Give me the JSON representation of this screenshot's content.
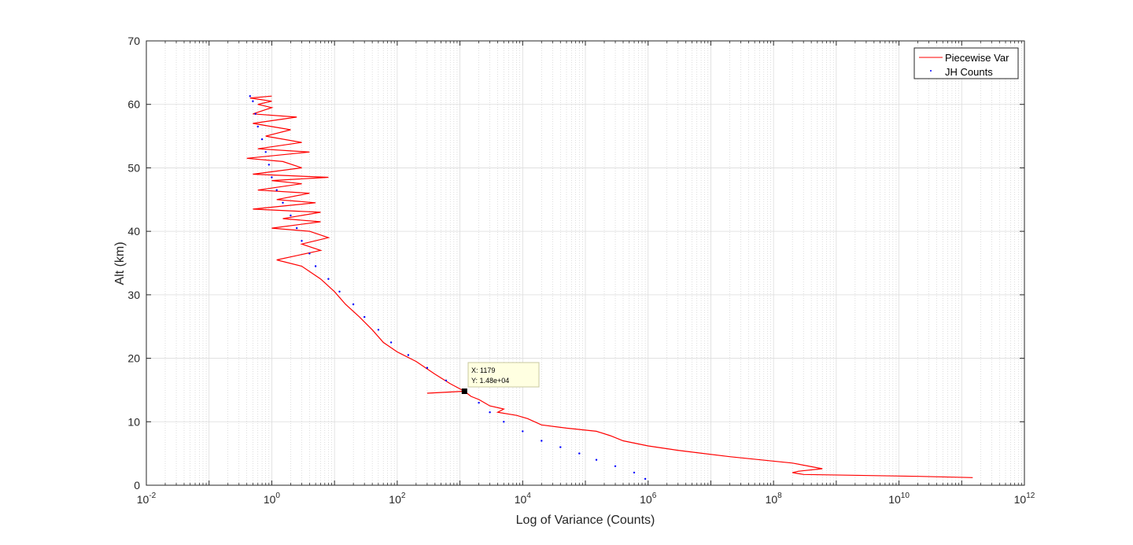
{
  "chart_data": {
    "type": "line",
    "title": "",
    "xlabel": "Log of Variance (Counts)",
    "ylabel": "Alt (km)",
    "xscale": "log",
    "xlim": [
      0.01,
      1000000000000
    ],
    "ylim": [
      0,
      70
    ],
    "x_ticks": [
      {
        "base": "10",
        "exp": "-2"
      },
      {
        "base": "10",
        "exp": "0"
      },
      {
        "base": "10",
        "exp": "2"
      },
      {
        "base": "10",
        "exp": "4"
      },
      {
        "base": "10",
        "exp": "6"
      },
      {
        "base": "10",
        "exp": "8"
      },
      {
        "base": "10",
        "exp": "10"
      },
      {
        "base": "10",
        "exp": "12"
      }
    ],
    "y_ticks": [
      "0",
      "10",
      "20",
      "30",
      "40",
      "50",
      "60",
      "70"
    ],
    "grid": true,
    "minor_grid": true,
    "legend_position": "top-right",
    "series": [
      {
        "name": "Piecewise Var",
        "color": "#ff0000",
        "style": "line",
        "points": [
          [
            150000000000,
            1.2
          ],
          [
            20000000000,
            1.4
          ],
          [
            300000000,
            1.7
          ],
          [
            200000000,
            2.0
          ],
          [
            250000000,
            2.2
          ],
          [
            600000000,
            2.6
          ],
          [
            200000000,
            3.5
          ],
          [
            20000000,
            4.5
          ],
          [
            3000000,
            5.5
          ],
          [
            1000000,
            6.2
          ],
          [
            400000,
            7.0
          ],
          [
            250000,
            7.8
          ],
          [
            150000,
            8.5
          ],
          [
            50000,
            9.0
          ],
          [
            20000,
            9.5
          ],
          [
            12000,
            10.5
          ],
          [
            8000,
            11.0
          ],
          [
            4000,
            11.5
          ],
          [
            5000,
            12.0
          ],
          [
            3000,
            12.5
          ],
          [
            2000,
            13.5
          ],
          [
            1500,
            14.0
          ],
          [
            1179,
            14.8
          ],
          [
            300,
            14.5
          ],
          [
            1179,
            14.8
          ],
          [
            700,
            16.0
          ],
          [
            400,
            17.5
          ],
          [
            200,
            19.5
          ],
          [
            100,
            21.0
          ],
          [
            60,
            22.5
          ],
          [
            40,
            24.5
          ],
          [
            25,
            26.5
          ],
          [
            15,
            28.5
          ],
          [
            10,
            30.5
          ],
          [
            6,
            32.5
          ],
          [
            3,
            34.5
          ],
          [
            1.2,
            35.5
          ],
          [
            6,
            37.0
          ],
          [
            3,
            38.0
          ],
          [
            8,
            39.0
          ],
          [
            4,
            40.0
          ],
          [
            1.0,
            40.5
          ],
          [
            6,
            41.5
          ],
          [
            1.5,
            42.0
          ],
          [
            6,
            43.0
          ],
          [
            0.5,
            43.5
          ],
          [
            5,
            44.5
          ],
          [
            1.2,
            45.0
          ],
          [
            4,
            46.0
          ],
          [
            0.6,
            46.5
          ],
          [
            3,
            47.5
          ],
          [
            1.0,
            48.0
          ],
          [
            8,
            48.5
          ],
          [
            0.5,
            49.0
          ],
          [
            3,
            50.0
          ],
          [
            1.5,
            51.0
          ],
          [
            0.4,
            51.5
          ],
          [
            4,
            52.5
          ],
          [
            0.6,
            53.0
          ],
          [
            3,
            54.0
          ],
          [
            0.8,
            55.0
          ],
          [
            2,
            56.0
          ],
          [
            0.5,
            57.0
          ],
          [
            2.5,
            58.0
          ],
          [
            0.5,
            58.5
          ],
          [
            1.0,
            59.5
          ],
          [
            0.6,
            60.0
          ],
          [
            1.0,
            60.5
          ],
          [
            0.45,
            61.0
          ],
          [
            1.0,
            61.3
          ]
        ]
      },
      {
        "name": "JH Counts",
        "color": "#0000ff",
        "style": "dots",
        "points": [
          [
            900000,
            1.0
          ],
          [
            600000,
            2.0
          ],
          [
            300000,
            3.0
          ],
          [
            150000,
            4.0
          ],
          [
            80000,
            5.0
          ],
          [
            40000,
            6.0
          ],
          [
            20000,
            7.0
          ],
          [
            10000,
            8.5
          ],
          [
            5000,
            10.0
          ],
          [
            3000,
            11.5
          ],
          [
            2000,
            13.0
          ],
          [
            1179,
            14.8
          ],
          [
            600,
            16.5
          ],
          [
            300,
            18.5
          ],
          [
            150,
            20.5
          ],
          [
            80,
            22.5
          ],
          [
            50,
            24.5
          ],
          [
            30,
            26.5
          ],
          [
            20,
            28.5
          ],
          [
            12,
            30.5
          ],
          [
            8,
            32.5
          ],
          [
            5,
            34.5
          ],
          [
            4,
            36.5
          ],
          [
            3,
            38.5
          ],
          [
            2.5,
            40.5
          ],
          [
            2,
            42.5
          ],
          [
            1.5,
            44.5
          ],
          [
            1.2,
            46.5
          ],
          [
            1.0,
            48.5
          ],
          [
            0.9,
            50.5
          ],
          [
            0.8,
            52.5
          ],
          [
            0.7,
            54.5
          ],
          [
            0.6,
            56.5
          ],
          [
            0.55,
            58.5
          ],
          [
            0.5,
            60.5
          ],
          [
            0.45,
            61.3
          ]
        ]
      }
    ],
    "annotation": {
      "x": 1179,
      "y": 14.8,
      "x_text": "X: 1179",
      "y_text": "Y: 1.48e+04"
    }
  }
}
